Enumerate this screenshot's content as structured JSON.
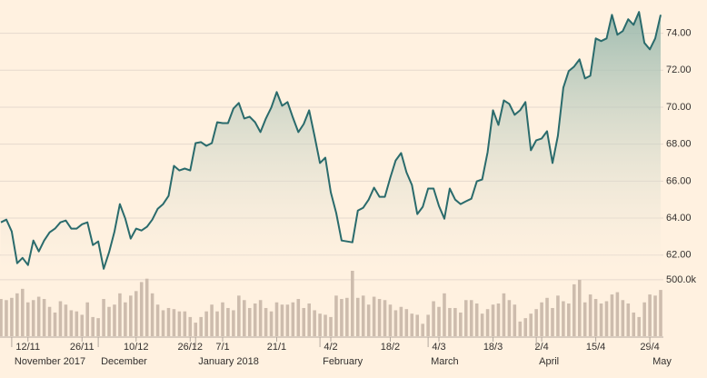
{
  "chart_data": {
    "type": "line",
    "categories": [
      null,
      null,
      null,
      null,
      null,
      "12/11",
      null,
      null,
      null,
      null,
      null,
      null,
      null,
      null,
      null,
      "26/11",
      null,
      null,
      null,
      null,
      null,
      null,
      null,
      null,
      null,
      "10/12",
      null,
      null,
      null,
      null,
      null,
      null,
      null,
      null,
      null,
      "26/12",
      null,
      null,
      null,
      null,
      null,
      "7/1",
      null,
      null,
      null,
      null,
      null,
      null,
      null,
      null,
      null,
      "21/1",
      null,
      null,
      null,
      null,
      null,
      null,
      null,
      null,
      null,
      "4/2",
      null,
      null,
      null,
      null,
      null,
      null,
      null,
      null,
      null,
      null,
      "18/2",
      null,
      null,
      null,
      null,
      null,
      null,
      null,
      null,
      "4/3",
      null,
      null,
      null,
      null,
      null,
      null,
      null,
      null,
      null,
      "18/3",
      null,
      null,
      null,
      null,
      null,
      null,
      null,
      null,
      "2/4",
      null,
      null,
      null,
      null,
      null,
      null,
      null,
      null,
      null,
      "15/4",
      null,
      null,
      null,
      null,
      null,
      null,
      null,
      null,
      null,
      "29/4",
      null,
      null
    ],
    "months": [
      null,
      null,
      "November 2017",
      null,
      null,
      null,
      null,
      null,
      null,
      null,
      null,
      null,
      null,
      null,
      null,
      null,
      null,
      null,
      "December",
      null,
      null,
      null,
      null,
      null,
      null,
      null,
      null,
      null,
      null,
      null,
      null,
      null,
      null,
      null,
      null,
      null,
      "January 2018",
      null,
      null,
      null,
      null,
      null,
      null,
      null,
      null,
      null,
      null,
      null,
      null,
      null,
      null,
      null,
      null,
      null,
      null,
      null,
      null,
      null,
      null,
      "February",
      null,
      null,
      null,
      null,
      null,
      null,
      null,
      null,
      null,
      null,
      null,
      null,
      null,
      null,
      null,
      null,
      null,
      null,
      null,
      "March",
      null,
      null,
      null,
      null,
      null,
      null,
      null,
      null,
      null,
      null,
      null,
      null,
      null,
      null,
      null,
      null,
      null,
      null,
      null,
      "April",
      null,
      null,
      null,
      null,
      null,
      null,
      null,
      null,
      null,
      null,
      null,
      null,
      null,
      null,
      null,
      null,
      null,
      null,
      null,
      null,
      "May",
      null,
      null
    ],
    "series": [
      {
        "color": "#2a6b6c",
        "values": [
          63.77,
          63.92,
          63.28,
          61.56,
          61.85,
          61.46,
          62.79,
          62.2,
          62.79,
          63.23,
          63.43,
          63.77,
          63.87,
          63.43,
          63.43,
          63.67,
          63.77,
          62.54,
          62.74,
          61.26,
          62.15,
          63.28,
          64.76,
          63.97,
          62.89,
          63.43,
          63.33,
          63.53,
          63.92,
          64.51,
          64.76,
          65.2,
          66.83,
          66.58,
          66.68,
          66.58,
          68.06,
          68.11,
          67.91,
          68.06,
          69.19,
          69.14,
          69.14,
          69.93,
          70.23,
          69.39,
          69.49,
          69.19,
          68.65,
          69.39,
          69.98,
          70.82,
          70.08,
          70.28,
          69.44,
          68.65,
          69.09,
          69.83,
          68.45,
          66.98,
          67.27,
          65.4,
          64.27,
          62.79,
          62.74,
          62.69,
          64.41,
          64.56,
          65.0,
          65.65,
          65.15,
          65.15,
          66.19,
          67.12,
          67.52,
          66.48,
          65.79,
          64.22,
          64.61,
          65.6,
          65.6,
          64.66,
          63.97,
          65.6,
          65.0,
          64.76,
          64.91,
          65.05,
          65.99,
          66.09,
          67.57,
          69.83,
          69.04,
          70.37,
          70.18,
          69.59,
          69.83,
          70.28,
          67.67,
          68.21,
          68.31,
          68.7,
          66.98,
          68.45,
          71.06,
          71.95,
          72.2,
          72.59,
          71.56,
          71.7,
          73.72,
          73.58,
          73.72,
          75.0,
          73.92,
          74.12,
          74.76,
          74.46,
          75.15,
          73.48,
          73.13,
          73.72,
          75.0
        ]
      },
      {
        "color": "#cdbcad",
        "axis": "y2",
        "type": "bar",
        "values": [
          330000,
          320000,
          340000,
          380000,
          420000,
          300000,
          320000,
          350000,
          330000,
          260000,
          210000,
          310000,
          280000,
          230000,
          220000,
          190000,
          300000,
          170000,
          160000,
          330000,
          260000,
          280000,
          380000,
          300000,
          360000,
          400000,
          480000,
          510000,
          380000,
          280000,
          230000,
          250000,
          240000,
          220000,
          220000,
          170000,
          120000,
          170000,
          220000,
          280000,
          220000,
          300000,
          250000,
          230000,
          360000,
          320000,
          250000,
          290000,
          320000,
          250000,
          220000,
          300000,
          280000,
          280000,
          300000,
          330000,
          250000,
          290000,
          230000,
          200000,
          190000,
          170000,
          360000,
          330000,
          340000,
          580000,
          340000,
          360000,
          280000,
          350000,
          330000,
          320000,
          280000,
          230000,
          260000,
          240000,
          200000,
          190000,
          110000,
          190000,
          310000,
          260000,
          380000,
          250000,
          250000,
          210000,
          320000,
          320000,
          290000,
          200000,
          240000,
          280000,
          290000,
          380000,
          320000,
          280000,
          130000,
          160000,
          200000,
          240000,
          300000,
          340000,
          250000,
          360000,
          310000,
          290000,
          460000,
          500000,
          300000,
          370000,
          330000,
          290000,
          310000,
          370000,
          390000,
          320000,
          290000,
          210000,
          170000,
          300000,
          370000,
          360000,
          410000
        ]
      }
    ],
    "ylim": [
      61.2,
      75.8
    ],
    "yticks": [
      {
        "value": 62,
        "label": "62.00"
      },
      {
        "value": 64,
        "label": "64.00"
      },
      {
        "value": 66,
        "label": "66.00"
      },
      {
        "value": 68,
        "label": "68.00"
      },
      {
        "value": 70,
        "label": "70.00"
      },
      {
        "value": 72,
        "label": "72.00"
      },
      {
        "value": 74,
        "label": "74.00"
      }
    ],
    "y2lim": [
      0,
      580000
    ],
    "y2ticks": [
      {
        "value": 500000,
        "label": "500.0k"
      }
    ],
    "grid": true
  }
}
